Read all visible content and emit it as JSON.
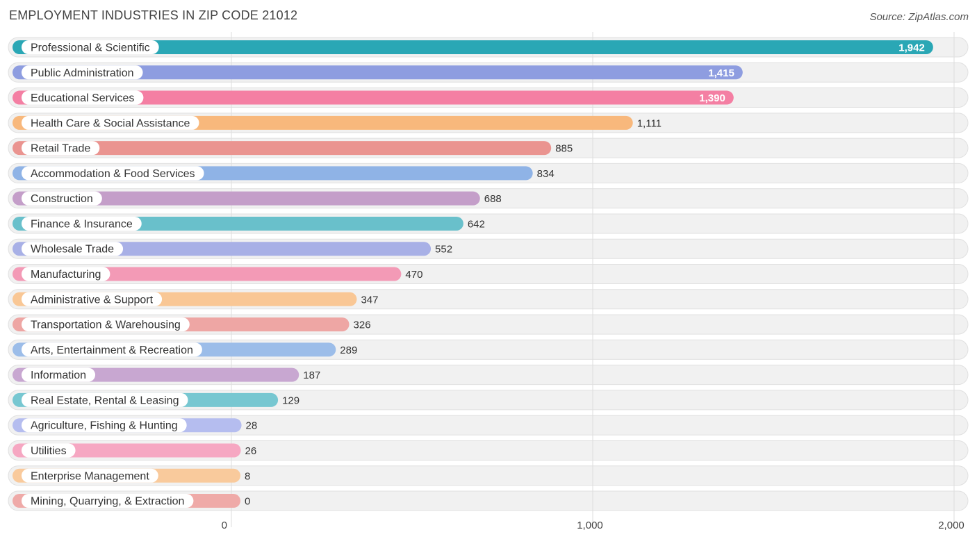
{
  "title": "EMPLOYMENT INDUSTRIES IN ZIP CODE 21012",
  "source": "Source: ZipAtlas.com",
  "chart_data": {
    "type": "bar",
    "orientation": "horizontal",
    "title": "EMPLOYMENT INDUSTRIES IN ZIP CODE 21012",
    "xlim": [
      0,
      2000
    ],
    "ticks": [
      0,
      1000,
      2000
    ],
    "tick_labels": [
      "0",
      "1,000",
      "2,000"
    ],
    "grid": true,
    "categories": [
      "Professional & Scientific",
      "Public Administration",
      "Educational Services",
      "Health Care & Social Assistance",
      "Retail Trade",
      "Accommodation & Food Services",
      "Construction",
      "Finance & Insurance",
      "Wholesale Trade",
      "Manufacturing",
      "Administrative & Support",
      "Transportation & Warehousing",
      "Arts, Entertainment & Recreation",
      "Information",
      "Real Estate, Rental & Leasing",
      "Agriculture, Fishing & Hunting",
      "Utilities",
      "Enterprise Management",
      "Mining, Quarrying, & Extraction"
    ],
    "values": [
      1942,
      1415,
      1390,
      1111,
      885,
      834,
      688,
      642,
      552,
      470,
      347,
      326,
      289,
      187,
      129,
      28,
      26,
      8,
      0
    ],
    "value_labels": [
      "1,942",
      "1,415",
      "1,390",
      "1,111",
      "885",
      "834",
      "688",
      "642",
      "552",
      "470",
      "347",
      "326",
      "289",
      "187",
      "129",
      "28",
      "26",
      "8",
      "0"
    ],
    "colors": [
      "#2aa7b5",
      "#8e9de0",
      "#f47fa3",
      "#f8b87c",
      "#ea9490",
      "#8fb3e6",
      "#c49ec9",
      "#69c0cb",
      "#a8b0e6",
      "#f39ab6",
      "#f9c795",
      "#eea6a4",
      "#9cbde9",
      "#c8a7d1",
      "#77c7d1",
      "#b5bdef",
      "#f6a7c2",
      "#f9ca9c",
      "#efaaa8"
    ]
  }
}
